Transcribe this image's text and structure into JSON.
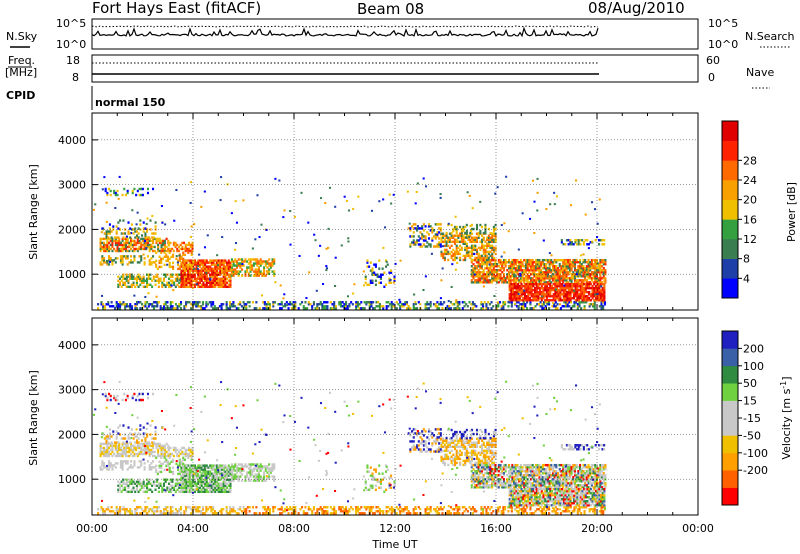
{
  "header": {
    "station": "Fort Hays East (fitACF)",
    "beam": "Beam 08",
    "date": "08/Aug/2010"
  },
  "panels": {
    "nsky_label": "N.Sky",
    "nsky_ticks": [
      "10^5",
      "10^0"
    ],
    "nsearch_label": "N.Search",
    "freq_label_1": "Freq.",
    "freq_label_2": "[MHz]",
    "freq_ticks": [
      "18",
      "8"
    ],
    "nave_label": "Nave",
    "nave_ticks": [
      "60",
      "0"
    ],
    "cpid_label": "CPID",
    "cpid_value": "normal 150"
  },
  "colors": {
    "power_scale": [
      "#0000ff",
      "#1f3fa8",
      "#3a7d50",
      "#35a040",
      "#f0c000",
      "#f8a000",
      "#ff6a00",
      "#ff2200",
      "#e00000"
    ],
    "velocity_scale": [
      "#2020c0",
      "#3a60a8",
      "#2e8b40",
      "#6fd040",
      "#c8c8c8",
      "#c8c8c8",
      "#f0c000",
      "#ffa000",
      "#ff6000",
      "#ff0000"
    ]
  },
  "chart_data": [
    {
      "type": "heatmap",
      "name": "power",
      "ylabel": "Slant Range [km]",
      "x_ticks": [
        "00:00",
        "04:00",
        "08:00",
        "12:00",
        "16:00",
        "20:00",
        "00:00"
      ],
      "y_ticks": [
        1000,
        2000,
        3000,
        4000
      ],
      "ylim": [
        200,
        4600
      ],
      "xlim_hours": [
        0,
        24
      ],
      "colorbar_label": "Power [dB]",
      "colorbar_ticks": [
        "4",
        "8",
        "12",
        "16",
        "20",
        "24",
        "28"
      ],
      "grid": true
    },
    {
      "type": "heatmap",
      "name": "velocity",
      "ylabel": "Slant Range [km]",
      "xlabel": "Time UT",
      "x_ticks": [
        "00:00",
        "04:00",
        "08:00",
        "12:00",
        "16:00",
        "20:00",
        "00:00"
      ],
      "y_ticks": [
        1000,
        2000,
        3000,
        4000
      ],
      "ylim": [
        200,
        4600
      ],
      "xlim_hours": [
        0,
        24
      ],
      "colorbar_label": "Velocity [m s^-1]",
      "colorbar_ticks": [
        "200",
        "100",
        "50",
        "15",
        "-15",
        "-50",
        "-100",
        "-200"
      ],
      "grid": true
    }
  ]
}
